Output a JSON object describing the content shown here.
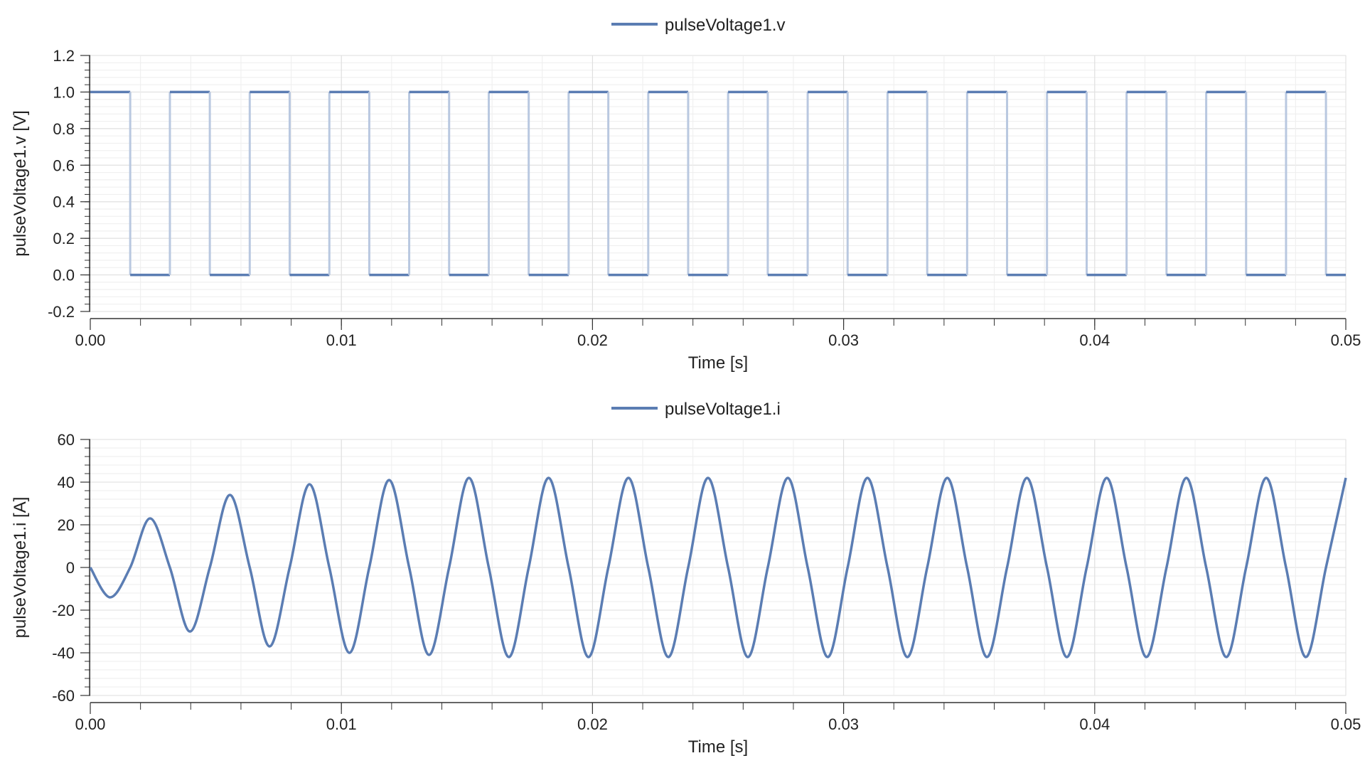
{
  "colors": {
    "series": "#5b7db3",
    "series_light": "#b9c8e0",
    "grid_major": "#dddddd",
    "grid_minor": "#eeeeee",
    "axis": "#333333"
  },
  "chart_data": [
    {
      "type": "line",
      "legend": "pulseVoltage1.v",
      "xlabel": "Time [s]",
      "ylabel": "pulseVoltage1.v [V]",
      "xlim": [
        0,
        0.05
      ],
      "ylim": [
        -0.2,
        1.2
      ],
      "xticks": [
        "0.00",
        "0.01",
        "0.02",
        "0.03",
        "0.04",
        "0.05"
      ],
      "yticks": [
        "1.2",
        "1.0",
        "0.8",
        "0.6",
        "0.4",
        "0.2",
        "0.0",
        "-0.2"
      ],
      "grid": true,
      "legend_position": "top-center",
      "series": [
        {
          "name": "pulseVoltage1.v",
          "kind": "square_pulse",
          "high": 1.0,
          "low": 0.0,
          "period": 0.003174,
          "width_fraction": 0.5,
          "start": 0.0,
          "x_values": [
            0,
            0.00159,
            0.00317,
            0.00476,
            0.00635,
            0.00794,
            0.00952,
            0.01111,
            0.0127,
            0.01429,
            0.01587,
            0.01746,
            0.01905,
            0.02063,
            0.02222,
            0.02381,
            0.0254,
            0.02698,
            0.02857,
            0.03016,
            0.03175,
            0.03333,
            0.03492,
            0.03651,
            0.0381,
            0.03968,
            0.04127,
            0.04286,
            0.04444,
            0.04603,
            0.04762,
            0.04921,
            0.05
          ],
          "y_values": [
            1,
            0,
            1,
            0,
            1,
            0,
            1,
            0,
            1,
            0,
            1,
            0,
            1,
            0,
            1,
            0,
            1,
            0,
            1,
            0,
            1,
            0,
            1,
            0,
            1,
            0,
            1,
            0,
            1,
            0,
            1,
            0,
            0
          ]
        }
      ]
    },
    {
      "type": "line",
      "legend": "pulseVoltage1.i",
      "xlabel": "Time [s]",
      "ylabel": "pulseVoltage1.i [A]",
      "xlim": [
        0,
        0.05
      ],
      "ylim": [
        -60,
        60
      ],
      "xticks": [
        "0.00",
        "0.01",
        "0.02",
        "0.03",
        "0.04",
        "0.05"
      ],
      "yticks": [
        "60",
        "40",
        "20",
        "0",
        "-20",
        "-40",
        "-60"
      ],
      "grid": true,
      "legend_position": "top-center",
      "series": [
        {
          "name": "pulseVoltage1.i",
          "x": [
            0,
            0.00079,
            0.00159,
            0.00238,
            0.00317,
            0.00397,
            0.00476,
            0.00556,
            0.00635,
            0.00714,
            0.00794,
            0.00873,
            0.00952,
            0.01032,
            0.01111,
            0.0119,
            0.0127,
            0.01349,
            0.01429,
            0.01508,
            0.01587,
            0.01667,
            0.01746,
            0.01825,
            0.01905,
            0.01984,
            0.02063,
            0.02143,
            0.02222,
            0.02302,
            0.02381,
            0.0246,
            0.0254,
            0.02619,
            0.02698,
            0.02778,
            0.02857,
            0.02937,
            0.03016,
            0.03095,
            0.03175,
            0.03254,
            0.03333,
            0.03413,
            0.03492,
            0.03571,
            0.03651,
            0.0373,
            0.0381,
            0.03889,
            0.03968,
            0.04048,
            0.04127,
            0.04206,
            0.04286,
            0.04365,
            0.04444,
            0.04524,
            0.04603,
            0.04683,
            0.04762,
            0.04841,
            0.04921,
            0.05
          ],
          "y": [
            0,
            -14,
            0,
            23,
            0,
            -30,
            0,
            34,
            0,
            -37,
            0,
            39,
            0,
            -40,
            0,
            41,
            0,
            -41,
            0,
            42,
            0,
            -42,
            0,
            42,
            0,
            -42,
            0,
            42,
            0,
            -42,
            0,
            42,
            0,
            -42,
            0,
            42,
            0,
            -42,
            0,
            42,
            0,
            -42,
            0,
            42,
            0,
            -42,
            0,
            42,
            0,
            -42,
            0,
            42,
            0,
            -42,
            0,
            42,
            0,
            -42,
            0,
            42,
            0,
            -42,
            0,
            42
          ]
        }
      ]
    }
  ]
}
